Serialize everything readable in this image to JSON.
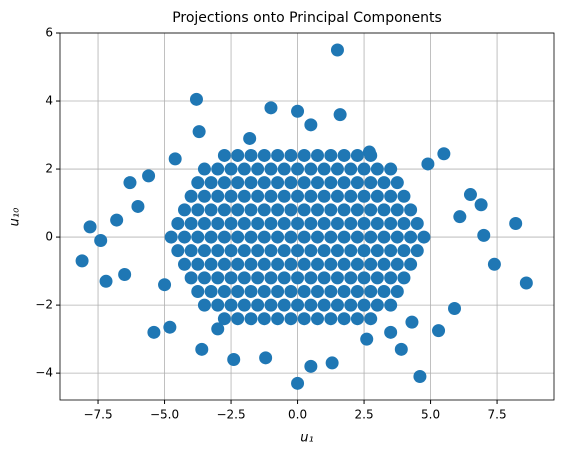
{
  "chart_data": {
    "type": "scatter",
    "title": "Projections onto Principal Components",
    "x_label": "u₁",
    "y_label": "u₁₀",
    "color": "#1f77b4",
    "grid": true,
    "xlim": [
      -8.93,
      9.64
    ],
    "ylim": [
      -4.79,
      6
    ],
    "xticks": [
      {
        "value": -7.5,
        "label": "−7.5"
      },
      {
        "value": -5,
        "label": "−5.0"
      },
      {
        "value": -2.5,
        "label": "−2.5"
      },
      {
        "value": 0,
        "label": "0.0"
      },
      {
        "value": 2.5,
        "label": "2.5"
      },
      {
        "value": 5,
        "label": "5.0"
      },
      {
        "value": 7.5,
        "label": "7.5"
      }
    ],
    "yticks": [
      {
        "value": -4,
        "label": "−4"
      },
      {
        "value": -2,
        "label": "−2"
      },
      0,
      2,
      4,
      6
    ],
    "x": [
      1.5,
      -3.8,
      -1.0,
      0,
      1.6,
      -3.7,
      0.5,
      -8.1,
      -7.8,
      -7.2,
      -6.8,
      -5.4,
      -4.8,
      -3.6,
      -2.4,
      -1.2,
      0,
      0.5,
      1.3,
      4.6,
      5.3,
      8.2,
      8.6,
      7.4,
      6.9,
      7.0,
      5.9,
      5.5,
      4.9,
      6.5,
      -6.3,
      -5.6,
      -6.5,
      -5.0,
      3.9,
      2.6,
      -1.8,
      2.7,
      4.3,
      -4.6,
      6.1,
      -6.0,
      -7.4,
      3.5,
      -3.0,
      -2.75,
      -2.25,
      -1.75,
      -1.25,
      -0.75,
      -0.25,
      0.25,
      0.75,
      1.25,
      1.75,
      2.25,
      2.75,
      -3.5,
      -3,
      -2.5,
      -2,
      -1.5,
      -1,
      -0.5,
      0,
      0.5,
      1,
      1.5,
      2,
      2.5,
      3,
      3.5,
      -3.75,
      -3.25,
      -2.75,
      -2.25,
      -1.75,
      -1.25,
      -0.75,
      -0.25,
      0.25,
      0.75,
      1.25,
      1.75,
      2.25,
      2.75,
      3.25,
      3.75,
      -4,
      -3.5,
      -3,
      -2.5,
      -2,
      -1.5,
      -1,
      -0.5,
      0,
      0.5,
      1,
      1.5,
      2,
      2.5,
      3,
      3.5,
      4,
      -4.25,
      -3.75,
      -3.25,
      -2.75,
      -2.25,
      -1.75,
      -1.25,
      -0.75,
      -0.25,
      0.25,
      0.75,
      1.25,
      1.75,
      2.25,
      2.75,
      3.25,
      3.75,
      4.25,
      -4.5,
      -4,
      -3.5,
      -3,
      -2.5,
      -2,
      -1.5,
      -1,
      -0.5,
      0,
      0.5,
      1,
      1.5,
      2,
      2.5,
      3,
      3.5,
      4,
      4.5,
      -4.75,
      -4.25,
      -3.75,
      -3.25,
      -2.75,
      -2.25,
      -1.75,
      -1.25,
      -0.75,
      -0.25,
      0.25,
      0.75,
      1.25,
      1.75,
      2.25,
      2.75,
      3.25,
      3.75,
      4.25,
      4.75,
      -4.5,
      -4,
      -3.5,
      -3,
      -2.5,
      -2,
      -1.5,
      -1,
      -0.5,
      0,
      0.5,
      1,
      1.5,
      2,
      2.5,
      3,
      3.5,
      4,
      4.5,
      -4.25,
      -3.75,
      -3.25,
      -2.75,
      -2.25,
      -1.75,
      -1.25,
      -0.75,
      -0.25,
      0.25,
      0.75,
      1.25,
      1.75,
      2.25,
      2.75,
      3.25,
      3.75,
      4.25,
      -4,
      -3.5,
      -3,
      -2.5,
      -2,
      -1.5,
      -1,
      -0.5,
      0,
      0.5,
      1,
      1.5,
      2,
      2.5,
      3,
      3.5,
      4,
      -3.75,
      -3.25,
      -2.75,
      -2.25,
      -1.75,
      -1.25,
      -0.75,
      -0.25,
      0.25,
      0.75,
      1.25,
      1.75,
      2.25,
      2.75,
      3.25,
      3.75,
      -3.5,
      -3,
      -2.5,
      -2,
      -1.5,
      -1,
      -0.5,
      0,
      0.5,
      1,
      1.5,
      2,
      2.5,
      3,
      3.5,
      -2.75,
      -2.25,
      -1.75,
      -1.25,
      -0.75,
      -0.25,
      0.25,
      0.75,
      1.25,
      1.75,
      2.25,
      2.75
    ],
    "y": [
      5.5,
      4.05,
      3.8,
      3.7,
      3.6,
      3.1,
      3.3,
      -0.7,
      0.3,
      -1.3,
      0.5,
      -2.8,
      -2.65,
      -3.3,
      -3.6,
      -3.55,
      -4.3,
      -3.8,
      -3.7,
      -4.1,
      -2.75,
      0.4,
      -1.35,
      -0.8,
      0.95,
      0.05,
      -2.1,
      2.45,
      2.15,
      1.25,
      1.6,
      1.8,
      -1.1,
      -1.4,
      -3.3,
      -3.0,
      2.9,
      2.5,
      -2.5,
      2.3,
      0.6,
      0.9,
      -0.1,
      -2.8,
      -2.7,
      2.4,
      2.4,
      2.4,
      2.4,
      2.4,
      2.4,
      2.4,
      2.4,
      2.4,
      2.4,
      2.4,
      2.4,
      2,
      2,
      2,
      2,
      2,
      2,
      2,
      2,
      2,
      2,
      2,
      2,
      2,
      2,
      2,
      1.6,
      1.6,
      1.6,
      1.6,
      1.6,
      1.6,
      1.6,
      1.6,
      1.6,
      1.6,
      1.6,
      1.6,
      1.6,
      1.6,
      1.6,
      1.6,
      1.2,
      1.2,
      1.2,
      1.2,
      1.2,
      1.2,
      1.2,
      1.2,
      1.2,
      1.2,
      1.2,
      1.2,
      1.2,
      1.2,
      1.2,
      1.2,
      1.2,
      0.8,
      0.8,
      0.8,
      0.8,
      0.8,
      0.8,
      0.8,
      0.8,
      0.8,
      0.8,
      0.8,
      0.8,
      0.8,
      0.8,
      0.8,
      0.8,
      0.8,
      0.8,
      0.4,
      0.4,
      0.4,
      0.4,
      0.4,
      0.4,
      0.4,
      0.4,
      0.4,
      0.4,
      0.4,
      0.4,
      0.4,
      0.4,
      0.4,
      0.4,
      0.4,
      0.4,
      0.4,
      0,
      0,
      0,
      0,
      0,
      0,
      0,
      0,
      0,
      0,
      0,
      0,
      0,
      0,
      0,
      0,
      0,
      0,
      0,
      0,
      -0.4,
      -0.4,
      -0.4,
      -0.4,
      -0.4,
      -0.4,
      -0.4,
      -0.4,
      -0.4,
      -0.4,
      -0.4,
      -0.4,
      -0.4,
      -0.4,
      -0.4,
      -0.4,
      -0.4,
      -0.4,
      -0.4,
      -0.8,
      -0.8,
      -0.8,
      -0.8,
      -0.8,
      -0.8,
      -0.8,
      -0.8,
      -0.8,
      -0.8,
      -0.8,
      -0.8,
      -0.8,
      -0.8,
      -0.8,
      -0.8,
      -0.8,
      -0.8,
      -1.2,
      -1.2,
      -1.2,
      -1.2,
      -1.2,
      -1.2,
      -1.2,
      -1.2,
      -1.2,
      -1.2,
      -1.2,
      -1.2,
      -1.2,
      -1.2,
      -1.2,
      -1.2,
      -1.2,
      -1.6,
      -1.6,
      -1.6,
      -1.6,
      -1.6,
      -1.6,
      -1.6,
      -1.6,
      -1.6,
      -1.6,
      -1.6,
      -1.6,
      -1.6,
      -1.6,
      -1.6,
      -1.6,
      -2,
      -2,
      -2,
      -2,
      -2,
      -2,
      -2,
      -2,
      -2,
      -2,
      -2,
      -2,
      -2,
      -2,
      -2,
      -2.4,
      -2.4,
      -2.4,
      -2.4,
      -2.4,
      -2.4,
      -2.4,
      -2.4,
      -2.4,
      -2.4,
      -2.4,
      -2.4
    ]
  }
}
